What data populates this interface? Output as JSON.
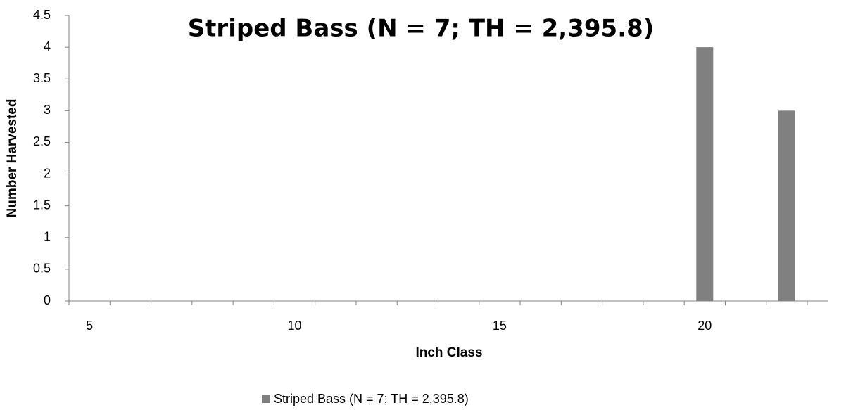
{
  "chart_data": {
    "type": "bar",
    "title": "Striped Bass (N = 7; TH = 2,395.8)",
    "x_label": "Inch Class",
    "y_label": "Number Harvested",
    "categories": [
      "5",
      null,
      null,
      null,
      null,
      "10",
      null,
      null,
      null,
      null,
      "15",
      null,
      null,
      null,
      null,
      "20",
      null,
      null
    ],
    "series": [
      {
        "name": "Striped Bass (N = 7; TH = 2,395.8)",
        "color": "#808080",
        "values": [
          0,
          0,
          0,
          0,
          0,
          0,
          0,
          0,
          0,
          0,
          0,
          0,
          0,
          0,
          0,
          4,
          0,
          3
        ]
      }
    ],
    "ylim": [
      0,
      4.5
    ],
    "yticks": [
      0,
      0.5,
      1,
      1.5,
      2,
      2.5,
      3,
      3.5,
      4,
      4.5
    ],
    "grid": false,
    "legend": "bottom"
  }
}
